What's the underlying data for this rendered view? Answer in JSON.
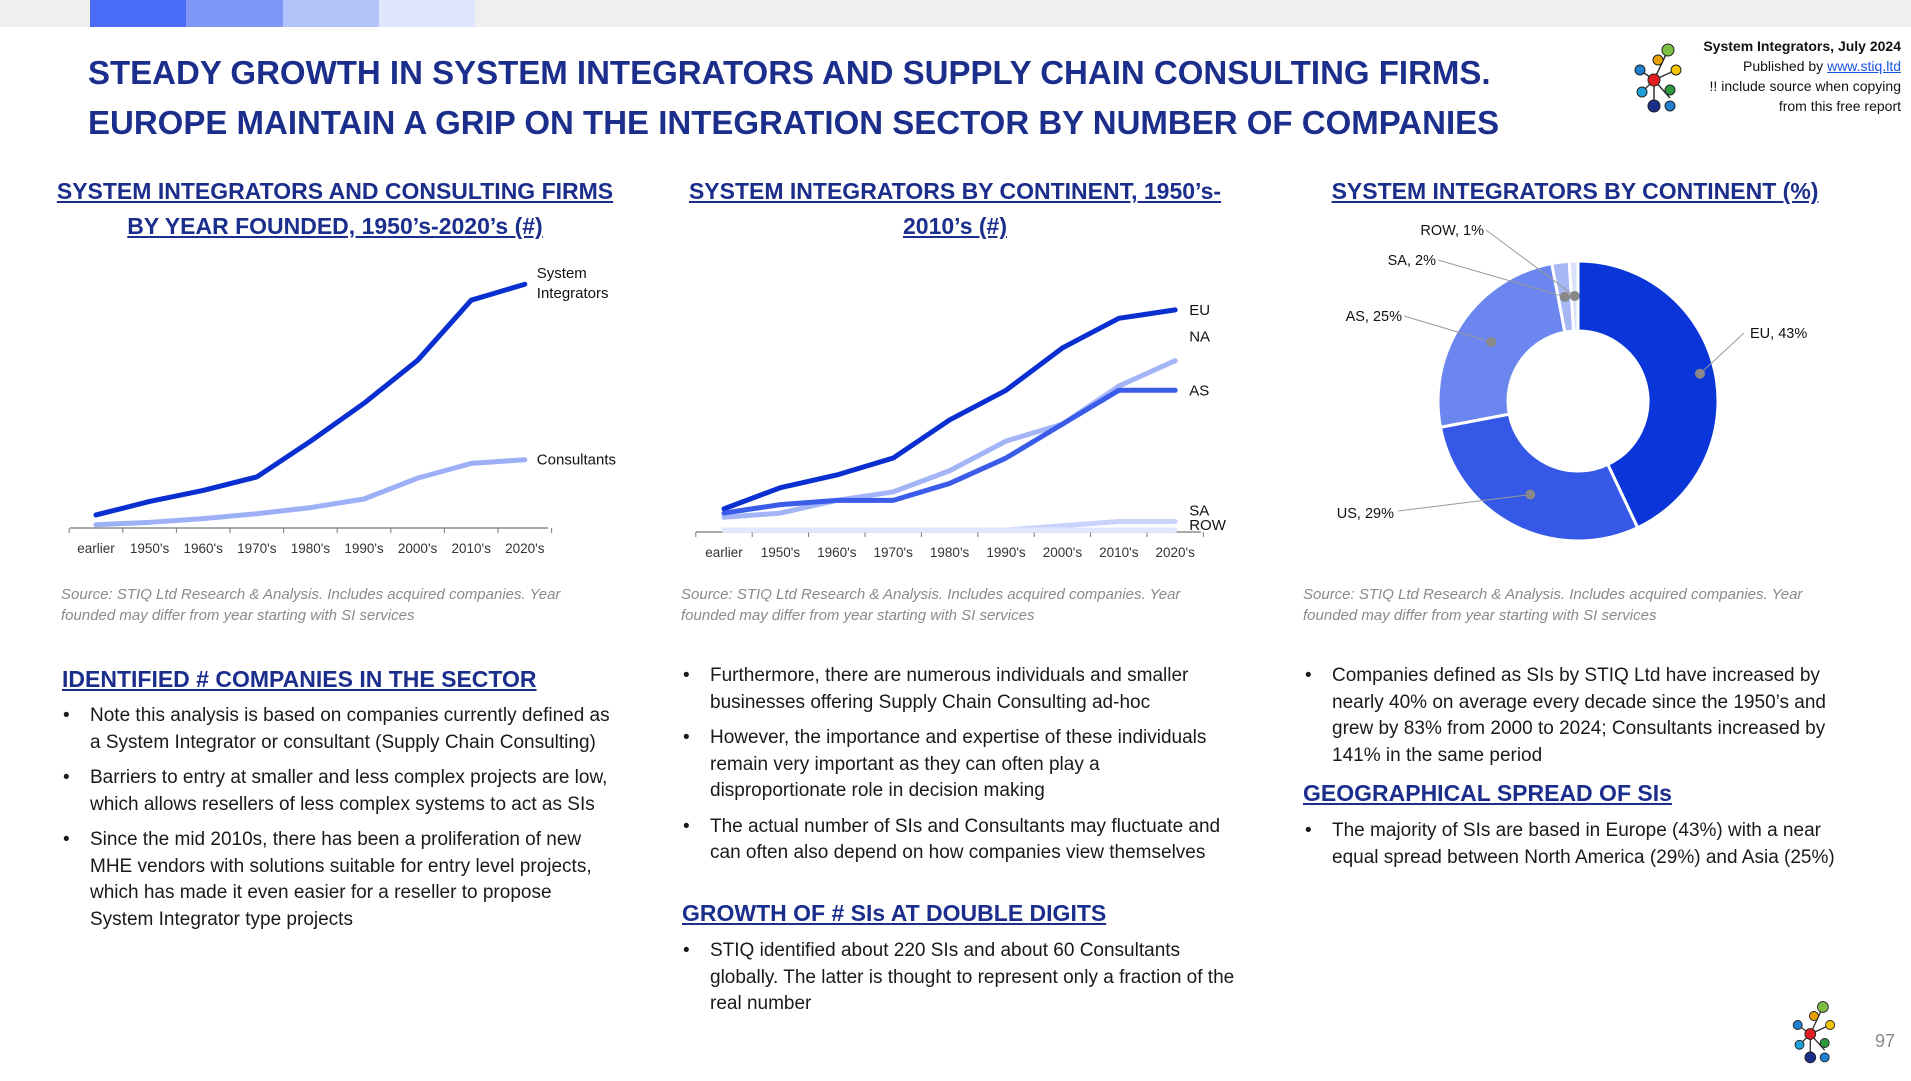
{
  "header": {
    "title_line1": "STEADY GROWTH IN SYSTEM INTEGRATORS AND SUPPLY CHAIN CONSULTING FIRMS.",
    "title_line2": "EUROPE MAINTAIN A GRIP ON THE INTEGRATION SECTOR BY NUMBER OF COMPANIES",
    "publisher": {
      "line1": "System Integrators, July 2024",
      "published_by": "Published by",
      "link": "www.stiq.ltd",
      "line3": "!! include source when copying",
      "line4": "from this free report"
    },
    "topbar_colors": [
      "#4a6cf7",
      "#7f98f8",
      "#b4c4fa",
      "#dde6fd"
    ]
  },
  "charts": {
    "left": {
      "heading_line1": "SYSTEM INTEGRATORS AND CONSULTING FIRMS",
      "heading_line2": "BY YEAR FOUNDED, 1950’s-2020’s (#)",
      "source_line1": "Source: STIQ Ltd Research & Analysis. Includes acquired companies. Year",
      "source_line2": "founded may differ from year starting with SI services"
    },
    "middle": {
      "heading_line1": "SYSTEM INTEGRATORS BY CONTINENT, 1950’s-",
      "heading_line2": "2010’s (#)",
      "source_line1": "Source: STIQ Ltd Research & Analysis. Includes acquired companies. Year",
      "source_line2": "founded may differ from year starting with SI services"
    },
    "right": {
      "heading_line1": "SYSTEM INTEGRATORS BY CONTINENT (%)",
      "source_line1": "Source: STIQ Ltd Research & Analysis. Includes acquired companies. Year",
      "source_line2": "founded may differ from year starting with SI services"
    }
  },
  "chart_data": [
    {
      "type": "line",
      "categories": [
        "earlier",
        "1950's",
        "1960's",
        "1970's",
        "1980's",
        "1990's",
        "2000's",
        "2010's",
        "2020's"
      ],
      "series": [
        {
          "name": "System Integrators",
          "label_lines": [
            "System",
            "Integrators"
          ],
          "color": "#0a2fd1",
          "values": [
            9,
            20,
            29,
            40,
            69,
            100,
            135,
            184,
            197
          ]
        },
        {
          "name": "Consultants",
          "label_lines": [
            "Consultants"
          ],
          "color": "#9db0f7",
          "values": [
            1,
            3,
            6,
            10,
            15,
            22,
            39,
            51,
            54
          ]
        }
      ],
      "ylim": [
        0,
        220
      ],
      "grid": false
    },
    {
      "type": "line",
      "categories": [
        "earlier",
        "1950's",
        "1960's",
        "1970's",
        "1980's",
        "1990's",
        "2000's",
        "2010's",
        "2020's"
      ],
      "series": [
        {
          "name": "EU",
          "label_lines": [
            "EU"
          ],
          "color": "#0a2fd1",
          "values": [
            5,
            10,
            13,
            17,
            26,
            33,
            43,
            50,
            52
          ]
        },
        {
          "name": "NA",
          "label_lines": [
            "NA"
          ],
          "color": "#a3b4f7",
          "values": [
            3,
            4,
            7,
            9,
            14,
            21,
            25,
            34,
            40
          ]
        },
        {
          "name": "AS",
          "label_lines": [
            "AS"
          ],
          "color": "#3a5ce8",
          "values": [
            4,
            6,
            7,
            7,
            11,
            17,
            25,
            33,
            33
          ]
        },
        {
          "name": "SA",
          "label_lines": [
            "SA"
          ],
          "color": "#c7d3fb",
          "values": [
            0,
            0,
            0,
            0,
            0,
            0,
            1,
            2,
            2
          ]
        },
        {
          "name": "ROW",
          "label_lines": [
            "ROW"
          ],
          "color": "#e2e8fd",
          "values": [
            0,
            0,
            0,
            0,
            0,
            0,
            0,
            0,
            0
          ]
        }
      ],
      "ylim": [
        0,
        60
      ],
      "grid": false
    },
    {
      "type": "pie",
      "donut": true,
      "slices": [
        {
          "label": "EU, 43%",
          "value": 43,
          "color": "#0a35d8"
        },
        {
          "label": "US, 29%",
          "value": 29,
          "color": "#3558e6"
        },
        {
          "label": "AS, 25%",
          "value": 25,
          "color": "#6b86ee"
        },
        {
          "label": "SA, 2%",
          "value": 2,
          "color": "#a7b7f6"
        },
        {
          "label": "ROW, 1%",
          "value": 1,
          "color": "#d8e0fc"
        }
      ]
    }
  ],
  "text": {
    "col1_heading": "IDENTIFIED # COMPANIES IN THE SECTOR",
    "col1_bullets": [
      "Note this analysis is based on companies currently defined as a System Integrator or consultant (Supply Chain Consulting)",
      "Barriers to entry at smaller and less complex projects are low, which allows resellers of less complex systems to act as SIs",
      "Since the mid 2010s, there has been a proliferation of new MHE vendors with solutions suitable for entry level projects, which has made it even easier for a reseller to propose System Integrator type projects"
    ],
    "col2_bullets_a": [
      "Furthermore, there are numerous individuals and smaller businesses offering Supply Chain Consulting ad-hoc",
      "However, the importance and expertise of these individuals remain very important as they can often play a disproportionate role in decision making",
      "The actual number of SIs and Consultants may fluctuate and can often also depend on how companies view themselves"
    ],
    "col2_heading": "GROWTH OF # SIs AT DOUBLE DIGITS",
    "col2_bullets_b": [
      "STIQ identified about 220 SIs and about 60 Consultants globally. The latter is thought to represent only a fraction of the real number"
    ],
    "col3_bullets_a": [
      "Companies defined as SIs by STIQ Ltd have increased by nearly 40% on average every decade since the 1950’s and grew by 83% from 2000 to 2024; Consultants increased by 141% in the same period"
    ],
    "col3_heading": "GEOGRAPHICAL SPREAD OF SIs",
    "col3_bullets_b": [
      "The majority of SIs are based in Europe (43%) with a near equal spread between North America (29%) and Asia (25%)"
    ]
  },
  "footer": {
    "page_number": "97"
  }
}
